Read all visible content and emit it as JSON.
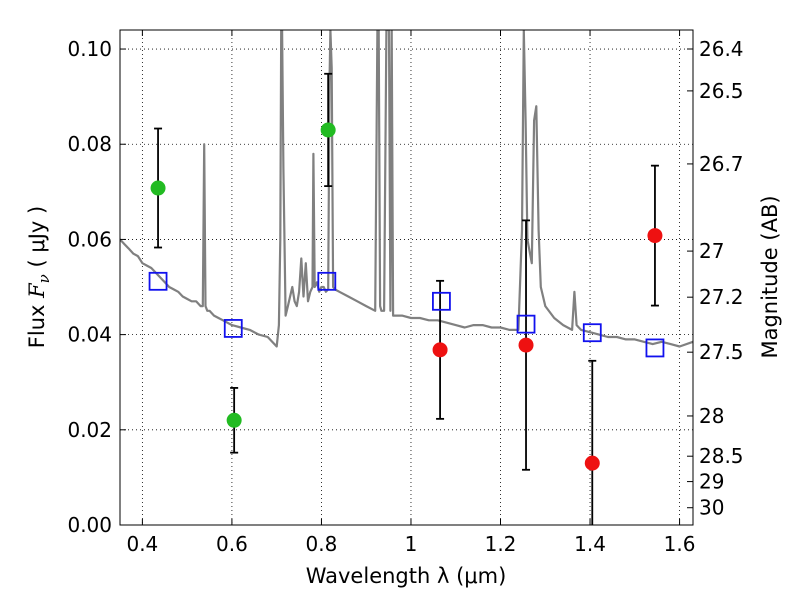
{
  "chart_data": {
    "type": "scatter",
    "title": "",
    "xlabel": "Wavelength  λ (μm)",
    "ylabel_main": "Flux  ",
    "ylabel_symbol": "F",
    "ylabel_subscript": "ν",
    "ylabel_unit": "  ( μJy )",
    "y2label": "Magnitude (AB)",
    "xlim": [
      0.35,
      1.63
    ],
    "ylim": [
      0.0,
      0.104
    ],
    "grid": true,
    "x_ticks": [
      {
        "value": 0.4,
        "label": "0.4"
      },
      {
        "value": 0.6,
        "label": "0.6"
      },
      {
        "value": 0.8,
        "label": "0.8"
      },
      {
        "value": 1.0,
        "label": "1"
      },
      {
        "value": 1.2,
        "label": "1.2"
      },
      {
        "value": 1.4,
        "label": "1.4"
      },
      {
        "value": 1.6,
        "label": "1.6"
      }
    ],
    "y_ticks": [
      {
        "value": 0.0,
        "label": "0.00"
      },
      {
        "value": 0.02,
        "label": "0.02"
      },
      {
        "value": 0.04,
        "label": "0.04"
      },
      {
        "value": 0.06,
        "label": "0.06"
      },
      {
        "value": 0.08,
        "label": "0.08"
      },
      {
        "value": 0.1,
        "label": "0.10"
      }
    ],
    "mag_ticks": [
      {
        "mag": 26.4,
        "label": "26.4"
      },
      {
        "mag": 26.5,
        "label": "26.5"
      },
      {
        "mag": 26.7,
        "label": "26.7"
      },
      {
        "mag": 27.0,
        "label": "27"
      },
      {
        "mag": 27.2,
        "label": "27.2"
      },
      {
        "mag": 27.5,
        "label": "27.5"
      },
      {
        "mag": 28.0,
        "label": "28"
      },
      {
        "mag": 28.5,
        "label": "28.5"
      },
      {
        "mag": 29.0,
        "label": "29"
      },
      {
        "mag": 30.0,
        "label": "30"
      }
    ],
    "model_spectrum": {
      "color": "#808080",
      "x": [
        0.35,
        0.36,
        0.37,
        0.38,
        0.39,
        0.4,
        0.41,
        0.42,
        0.43,
        0.44,
        0.45,
        0.46,
        0.47,
        0.48,
        0.49,
        0.5,
        0.51,
        0.52,
        0.53,
        0.535,
        0.538,
        0.541,
        0.545,
        0.55,
        0.56,
        0.57,
        0.58,
        0.59,
        0.6,
        0.62,
        0.64,
        0.66,
        0.68,
        0.7,
        0.705,
        0.708,
        0.71,
        0.712,
        0.715,
        0.72,
        0.725,
        0.73,
        0.735,
        0.74,
        0.745,
        0.75,
        0.755,
        0.76,
        0.765,
        0.77,
        0.775,
        0.78,
        0.782,
        0.785,
        0.79,
        0.795,
        0.8,
        0.805,
        0.81,
        0.815,
        0.818,
        0.82,
        0.823,
        0.826,
        0.83,
        0.84,
        0.86,
        0.88,
        0.9,
        0.92,
        0.925,
        0.928,
        0.931,
        0.934,
        0.94,
        0.945,
        0.948,
        0.951,
        0.954,
        0.957,
        0.96,
        0.98,
        1.0,
        1.02,
        1.04,
        1.06,
        1.08,
        1.1,
        1.12,
        1.14,
        1.16,
        1.18,
        1.2,
        1.22,
        1.24,
        1.248,
        1.252,
        1.256,
        1.26,
        1.27,
        1.275,
        1.28,
        1.285,
        1.29,
        1.3,
        1.32,
        1.34,
        1.36,
        1.365,
        1.37,
        1.375,
        1.38,
        1.4,
        1.42,
        1.44,
        1.46,
        1.48,
        1.5,
        1.52,
        1.54,
        1.56,
        1.58,
        1.6,
        1.63
      ],
      "y": [
        0.06,
        0.059,
        0.058,
        0.057,
        0.0565,
        0.055,
        0.0545,
        0.054,
        0.053,
        0.052,
        0.051,
        0.05,
        0.0495,
        0.049,
        0.048,
        0.0475,
        0.047,
        0.047,
        0.046,
        0.046,
        0.08,
        0.046,
        0.045,
        0.045,
        0.044,
        0.0435,
        0.043,
        0.0425,
        0.042,
        0.0415,
        0.041,
        0.04,
        0.0395,
        0.0375,
        0.042,
        0.06,
        0.104,
        0.104,
        0.075,
        0.044,
        0.046,
        0.048,
        0.05,
        0.047,
        0.046,
        0.049,
        0.056,
        0.048,
        0.055,
        0.047,
        0.049,
        0.05,
        0.078,
        0.05,
        0.051,
        0.049,
        0.05,
        0.05,
        0.049,
        0.0495,
        0.093,
        0.104,
        0.096,
        0.05,
        0.0495,
        0.049,
        0.048,
        0.047,
        0.046,
        0.045,
        0.104,
        0.104,
        0.046,
        0.045,
        0.045,
        0.104,
        0.104,
        0.104,
        0.045,
        0.104,
        0.044,
        0.044,
        0.0435,
        0.0435,
        0.043,
        0.043,
        0.0425,
        0.042,
        0.0415,
        0.042,
        0.042,
        0.0415,
        0.0415,
        0.041,
        0.041,
        0.062,
        0.104,
        0.085,
        0.06,
        0.055,
        0.085,
        0.088,
        0.062,
        0.05,
        0.046,
        0.0435,
        0.042,
        0.041,
        0.049,
        0.042,
        0.0415,
        0.041,
        0.0405,
        0.04,
        0.0395,
        0.0395,
        0.039,
        0.039,
        0.0385,
        0.038,
        0.0385,
        0.038,
        0.0375,
        0.0385
      ]
    },
    "series": [
      {
        "marker": "filled-circle",
        "color": "#22bb22",
        "points": [
          {
            "x": 0.435,
            "y": 0.0708,
            "err": 0.0125
          },
          {
            "x": 0.605,
            "y": 0.022,
            "err": 0.0068
          },
          {
            "x": 0.815,
            "y": 0.083,
            "err": 0.0118
          }
        ]
      },
      {
        "marker": "filled-circle",
        "color": "#ee1111",
        "points": [
          {
            "x": 1.065,
            "y": 0.0368,
            "err": 0.0145
          },
          {
            "x": 1.257,
            "y": 0.0378,
            "err": 0.0262
          },
          {
            "x": 1.405,
            "y": 0.013,
            "err": 0.0215
          },
          {
            "x": 1.545,
            "y": 0.0608,
            "err": 0.0147
          }
        ]
      },
      {
        "marker": "open-square",
        "color": "#1111ee",
        "points": [
          {
            "x": 0.435,
            "y": 0.0512
          },
          {
            "x": 0.603,
            "y": 0.0413
          },
          {
            "x": 0.812,
            "y": 0.0512
          },
          {
            "x": 1.068,
            "y": 0.047
          },
          {
            "x": 1.257,
            "y": 0.0422
          },
          {
            "x": 1.405,
            "y": 0.0404
          },
          {
            "x": 1.545,
            "y": 0.0372
          }
        ]
      }
    ]
  }
}
